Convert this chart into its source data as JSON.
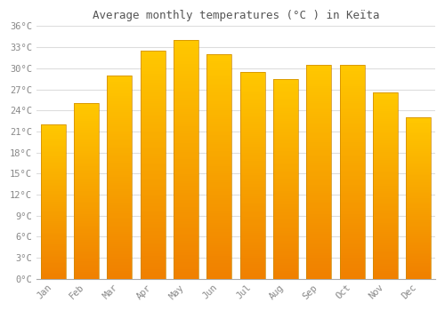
{
  "months": [
    "Jan",
    "Feb",
    "Mar",
    "Apr",
    "May",
    "Jun",
    "Jul",
    "Aug",
    "Sep",
    "Oct",
    "Nov",
    "Dec"
  ],
  "temperatures": [
    22.0,
    25.0,
    29.0,
    32.5,
    34.0,
    32.0,
    29.5,
    28.5,
    30.5,
    30.5,
    26.5,
    23.0
  ],
  "title": "Average monthly temperatures (°C ) in Keïta",
  "bar_color": "#FFA500",
  "bar_edge_color": "#CC8800",
  "background_color": "#FFFFFF",
  "grid_color": "#DDDDDD",
  "tick_label_color": "#888888",
  "title_color": "#555555",
  "ylim": [
    0,
    36
  ],
  "yticks": [
    0,
    3,
    6,
    9,
    12,
    15,
    18,
    21,
    24,
    27,
    30,
    33,
    36
  ],
  "bar_width": 0.75
}
